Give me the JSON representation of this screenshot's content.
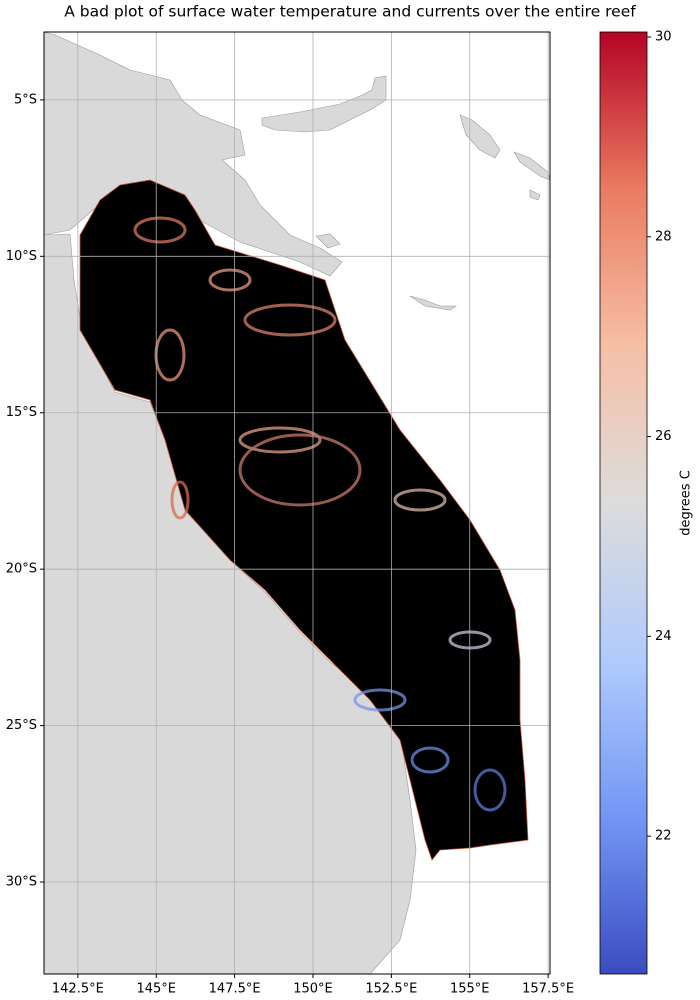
{
  "chart_data": {
    "type": "map",
    "title": "A bad plot of surface water temperature and currents over the entire reef",
    "xlim": [
      141.42,
      157.56
    ],
    "ylim": [
      -32.94,
      -2.83
    ],
    "xticks": [
      {
        "value": 142.5,
        "label": "142.5°E"
      },
      {
        "value": 145,
        "label": "145°E"
      },
      {
        "value": 147.5,
        "label": "147.5°E"
      },
      {
        "value": 150,
        "label": "150°E"
      },
      {
        "value": 152.5,
        "label": "152.5°E"
      },
      {
        "value": 155,
        "label": "155°E"
      },
      {
        "value": 157.5,
        "label": "157.5°E"
      }
    ],
    "yticks": [
      {
        "value": -5,
        "label": "5°S"
      },
      {
        "value": -10,
        "label": "10°S"
      },
      {
        "value": -15,
        "label": "15°S"
      },
      {
        "value": -20,
        "label": "20°S"
      },
      {
        "value": -25,
        "label": "25°S"
      },
      {
        "value": -30,
        "label": "30°S"
      }
    ],
    "grid": true,
    "colorbar": {
      "label": "degrees C",
      "cmap": "coolwarm",
      "lim": [
        20.62,
        30.05
      ],
      "ticks": [
        22,
        24,
        26,
        28,
        30
      ]
    }
  }
}
